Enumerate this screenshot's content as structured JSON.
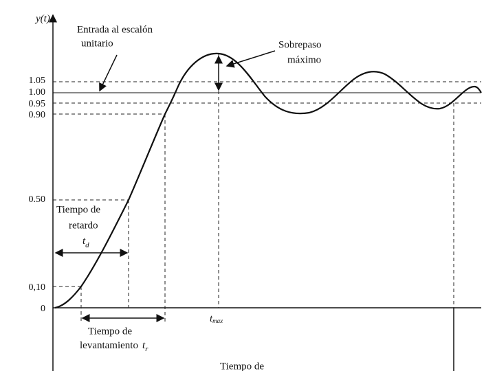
{
  "y_axis_label": "y(t)",
  "y_ticks": [
    "0",
    "0,10",
    "0.50",
    "0.90",
    "0.95",
    "1.00",
    "1.05"
  ],
  "step_input": {
    "line1": "Entrada al escalón",
    "line2": "unitario"
  },
  "overshoot": {
    "line1": "Sobrepaso",
    "line2": "máximo"
  },
  "delay_time": {
    "line1": "Tiempo de",
    "line2": "retardo",
    "symbol": "t",
    "subscript": "d"
  },
  "rise_time": {
    "line1": "Tiempo de",
    "line2": "levantamiento",
    "symbol": "t",
    "subscript": "r"
  },
  "peak_time": {
    "symbol": "t",
    "subscript": "max"
  },
  "settling_time": {
    "line1": "Tiempo de"
  }
}
